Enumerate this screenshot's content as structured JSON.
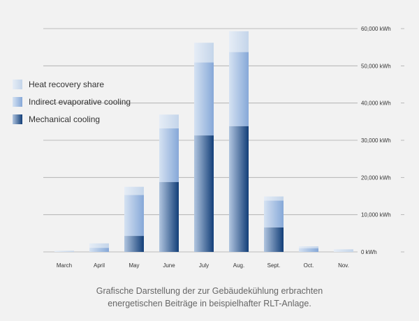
{
  "colors": {
    "mechanical_light": "#b2c6e0",
    "mechanical_dark": "#123e78",
    "indirect_light": "#d5e2f2",
    "indirect_dark": "#86a8d8",
    "recovery_light": "#e6edf6",
    "recovery_dark": "#c4d5ea",
    "grid": "#aaaaaa",
    "text": "#333333"
  },
  "legend": [
    {
      "label": "Heat recovery share",
      "color_from": "#e6edf6",
      "color_to": "#c4d5ea"
    },
    {
      "label": "Indirect evaporative cooling",
      "color_from": "#d5e2f2",
      "color_to": "#86a8d8"
    },
    {
      "label": "Mechanical cooling",
      "color_from": "#b2c6e0",
      "color_to": "#123e78"
    }
  ],
  "caption": {
    "line1": "Grafische Darstellung der zur Gebäudekühlung erbrachten",
    "line2": "energetischen Beiträge in beispielhafter RLT-Anlage."
  },
  "chart_data": {
    "type": "bar",
    "stacked": true,
    "categories": [
      "March",
      "April",
      "May",
      "June",
      "July",
      "Aug.",
      "Sept.",
      "Oct.",
      "Nov."
    ],
    "series": [
      {
        "name": "Mechanical cooling",
        "values": [
          0,
          0,
          4300,
          18800,
          31300,
          33800,
          6600,
          0,
          0
        ]
      },
      {
        "name": "Indirect evaporative cooling",
        "values": [
          0,
          1100,
          11000,
          14400,
          19600,
          19900,
          7200,
          1000,
          0
        ]
      },
      {
        "name": "Heat recovery share",
        "values": [
          300,
          1200,
          2200,
          3700,
          5300,
          5600,
          1100,
          500,
          700
        ]
      }
    ],
    "ylim": [
      0,
      60000
    ],
    "y_ticks": [
      0,
      10000,
      20000,
      30000,
      40000,
      50000,
      60000
    ],
    "y_tick_labels": [
      "0 kWh",
      "10,000 kWh",
      "20,000 kWh",
      "30,000 kWh",
      "40,000 kWh",
      "50,000 kWh",
      "60,000 kWh"
    ],
    "y_axis_side": "right",
    "grid": true,
    "legend_position": "left"
  }
}
